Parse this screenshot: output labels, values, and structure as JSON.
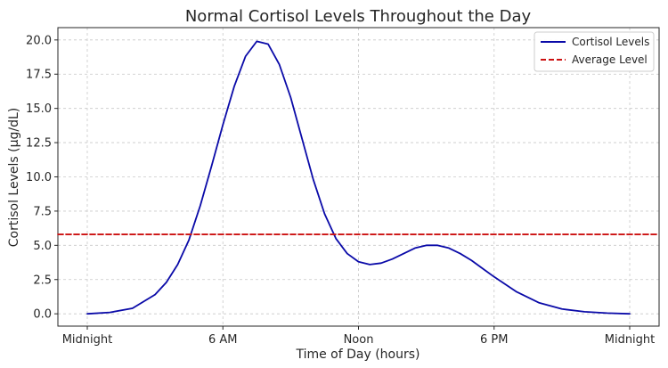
{
  "chart_data": {
    "type": "line",
    "title": "Normal Cortisol Levels Throughout the Day",
    "xlabel": "Time of Day (hours)",
    "ylabel": "Cortisol Levels (µg/dL)",
    "xlim": [
      -1.3,
      25.3
    ],
    "ylim": [
      -0.9,
      20.9
    ],
    "grid": true,
    "legend_position": "top-right",
    "x_ticks": [
      {
        "value": 0,
        "label": "Midnight"
      },
      {
        "value": 6,
        "label": "6 AM"
      },
      {
        "value": 12,
        "label": "Noon"
      },
      {
        "value": 18,
        "label": "6 PM"
      },
      {
        "value": 24,
        "label": "Midnight"
      }
    ],
    "y_ticks": [
      {
        "value": 0,
        "label": "0.0"
      },
      {
        "value": 2.5,
        "label": "2.5"
      },
      {
        "value": 5,
        "label": "5.0"
      },
      {
        "value": 7.5,
        "label": "7.5"
      },
      {
        "value": 10,
        "label": "10.0"
      },
      {
        "value": 12.5,
        "label": "12.5"
      },
      {
        "value": 15,
        "label": "15.0"
      },
      {
        "value": 17.5,
        "label": "17.5"
      },
      {
        "value": 20,
        "label": "20.0"
      }
    ],
    "series": [
      {
        "name": "Cortisol Levels",
        "color": "#0a0aa8",
        "style": "solid",
        "x": [
          0,
          1,
          2,
          3,
          3.5,
          4,
          4.5,
          5,
          5.5,
          6,
          6.5,
          7,
          7.5,
          8,
          8.5,
          9,
          9.5,
          10,
          10.5,
          11,
          11.5,
          12,
          12.5,
          13,
          13.5,
          14,
          14.5,
          15,
          15.5,
          16,
          16.5,
          17,
          17.5,
          18,
          19,
          20,
          21,
          22,
          23,
          24
        ],
        "y": [
          0.0,
          0.1,
          0.4,
          1.4,
          2.3,
          3.6,
          5.4,
          7.9,
          10.8,
          13.8,
          16.6,
          18.8,
          19.9,
          19.7,
          18.2,
          15.8,
          12.8,
          9.8,
          7.3,
          5.5,
          4.4,
          3.8,
          3.6,
          3.7,
          4.0,
          4.4,
          4.8,
          5.0,
          5.0,
          4.8,
          4.4,
          3.9,
          3.3,
          2.7,
          1.6,
          0.8,
          0.35,
          0.15,
          0.05,
          0.0
        ]
      },
      {
        "name": "Average Level",
        "color": "#cc1111",
        "style": "dashed",
        "x": [
          -1.3,
          25.3
        ],
        "y": [
          5.8,
          5.8
        ]
      }
    ]
  }
}
